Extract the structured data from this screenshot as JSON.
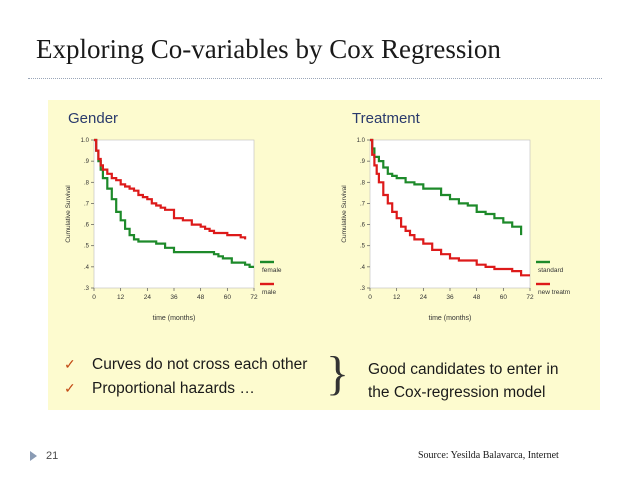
{
  "slide": {
    "title": "Exploring Co-variables by Cox Regression",
    "page_number": "21",
    "source": "Source: Yesilda Balavarca, Internet",
    "bullets": [
      "Curves do not cross each other",
      "Proportional hazards …"
    ],
    "conclusion": [
      "Good candidates to enter in",
      "the Cox-regression model"
    ],
    "check_icon": "checkmark-icon",
    "colors": {
      "series_green": "#1d8a2a",
      "series_red": "#dd1a1a",
      "panel_bg": "#fdfbcf",
      "bullet_check": "#c24a14"
    }
  },
  "chart_data": [
    {
      "type": "line",
      "title": "Gender",
      "xlabel": "time (months)",
      "ylabel": "Cumulative Survival",
      "xlim": [
        0,
        72
      ],
      "ylim": [
        0.3,
        1.0
      ],
      "x_ticks": [
        0,
        12,
        24,
        36,
        48,
        60,
        72
      ],
      "x_tick_labels": [
        "0",
        "12",
        "24",
        "36",
        "48",
        "60",
        "72"
      ],
      "y_ticks": [
        0.3,
        0.4,
        0.5,
        0.6,
        0.7,
        0.8,
        0.9,
        1.0
      ],
      "y_tick_labels": [
        ".3",
        ".4",
        ".5",
        ".6",
        ".7",
        ".8",
        ".9",
        "1.0"
      ],
      "legend_position": "bottom-right",
      "series": [
        {
          "name": "female",
          "color": "#1d8a2a",
          "x": [
            0,
            1,
            2,
            3,
            4,
            6,
            8,
            10,
            12,
            14,
            16,
            18,
            20,
            24,
            28,
            30,
            32,
            36,
            42,
            48,
            54,
            56,
            58,
            60,
            62,
            66,
            68,
            70,
            72
          ],
          "y": [
            1.0,
            0.95,
            0.9,
            0.86,
            0.82,
            0.77,
            0.72,
            0.66,
            0.62,
            0.58,
            0.55,
            0.53,
            0.52,
            0.52,
            0.51,
            0.51,
            0.49,
            0.47,
            0.47,
            0.47,
            0.46,
            0.45,
            0.44,
            0.44,
            0.42,
            0.42,
            0.41,
            0.4,
            0.4
          ]
        },
        {
          "name": "male",
          "color": "#dd1a1a",
          "x": [
            0,
            1,
            2,
            3,
            4,
            6,
            8,
            10,
            12,
            14,
            16,
            18,
            20,
            22,
            24,
            26,
            28,
            30,
            32,
            36,
            40,
            44,
            48,
            50,
            52,
            54,
            56,
            58,
            60,
            62,
            64,
            66,
            68
          ],
          "y": [
            1.0,
            0.95,
            0.91,
            0.88,
            0.86,
            0.84,
            0.82,
            0.81,
            0.79,
            0.78,
            0.77,
            0.76,
            0.74,
            0.73,
            0.72,
            0.7,
            0.69,
            0.68,
            0.67,
            0.63,
            0.62,
            0.6,
            0.59,
            0.58,
            0.57,
            0.56,
            0.56,
            0.56,
            0.55,
            0.55,
            0.55,
            0.54,
            0.53
          ]
        }
      ]
    },
    {
      "type": "line",
      "title": "Treatment",
      "xlabel": "time (months)",
      "ylabel": "Cumulative Survival",
      "xlim": [
        0,
        72
      ],
      "ylim": [
        0.3,
        1.0
      ],
      "x_ticks": [
        0,
        12,
        24,
        36,
        48,
        60,
        72
      ],
      "x_tick_labels": [
        "0",
        "12",
        "24",
        "36",
        "48",
        "60",
        "72"
      ],
      "y_ticks": [
        0.3,
        0.4,
        0.5,
        0.6,
        0.7,
        0.8,
        0.9,
        1.0
      ],
      "y_tick_labels": [
        ".3",
        ".4",
        ".5",
        ".6",
        ".7",
        ".8",
        ".9",
        "1.0"
      ],
      "legend_position": "bottom-right",
      "series": [
        {
          "name": "standard",
          "color": "#1d8a2a",
          "x": [
            0,
            1,
            2,
            4,
            6,
            8,
            10,
            12,
            14,
            16,
            20,
            24,
            28,
            32,
            36,
            40,
            44,
            48,
            52,
            56,
            60,
            64,
            66,
            68
          ],
          "y": [
            1.0,
            0.96,
            0.92,
            0.9,
            0.87,
            0.84,
            0.83,
            0.82,
            0.82,
            0.8,
            0.79,
            0.77,
            0.77,
            0.74,
            0.72,
            0.7,
            0.69,
            0.66,
            0.65,
            0.63,
            0.61,
            0.59,
            0.59,
            0.55
          ]
        },
        {
          "name": "new treatm",
          "color": "#dd1a1a",
          "x": [
            0,
            1,
            2,
            3,
            4,
            6,
            8,
            10,
            12,
            14,
            16,
            18,
            20,
            24,
            28,
            32,
            36,
            40,
            44,
            48,
            52,
            56,
            60,
            64,
            68,
            72
          ],
          "y": [
            1.0,
            0.93,
            0.88,
            0.84,
            0.8,
            0.74,
            0.7,
            0.66,
            0.63,
            0.59,
            0.57,
            0.55,
            0.53,
            0.51,
            0.48,
            0.46,
            0.44,
            0.43,
            0.43,
            0.41,
            0.4,
            0.39,
            0.39,
            0.38,
            0.36,
            0.36
          ]
        }
      ]
    }
  ]
}
